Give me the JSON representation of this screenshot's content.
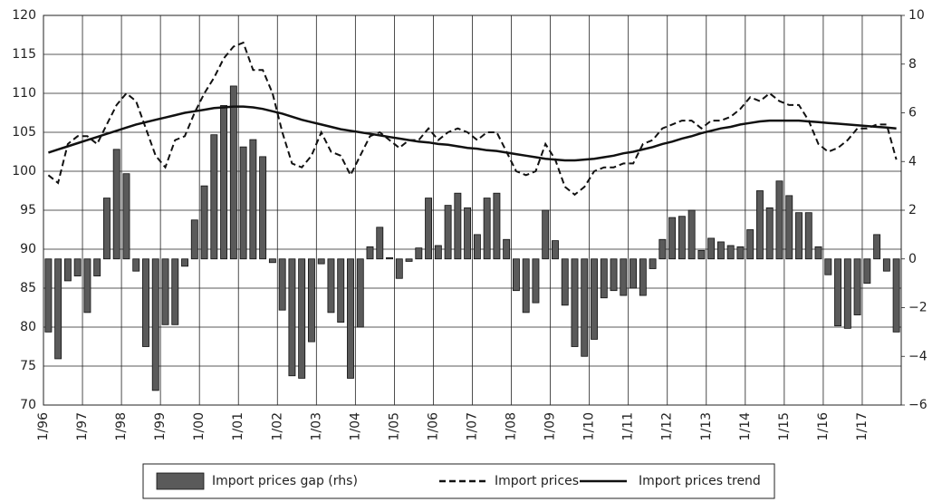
{
  "chart_data": {
    "type": "combo",
    "categories": [
      "1/96",
      null,
      null,
      null,
      "1/97",
      null,
      null,
      null,
      "1/98",
      null,
      null,
      null,
      "1/99",
      null,
      null,
      null,
      "1/00",
      null,
      null,
      null,
      "1/01",
      null,
      null,
      null,
      "1/02",
      null,
      null,
      null,
      "1/03",
      null,
      null,
      null,
      "1/04",
      null,
      null,
      null,
      "1/05",
      null,
      null,
      null,
      "1/06",
      null,
      null,
      null,
      "1/07",
      null,
      null,
      null,
      "1/08",
      null,
      null,
      null,
      "1/09",
      null,
      null,
      null,
      "1/10",
      null,
      null,
      null,
      "1/11",
      null,
      null,
      null,
      "1/12",
      null,
      null,
      null,
      "1/13",
      null,
      null,
      null,
      "1/14",
      null,
      null,
      null,
      "1/15",
      null,
      null,
      null,
      "1/16",
      null,
      null,
      null,
      "1/17",
      null,
      null,
      null
    ],
    "series": [
      {
        "name": "Import prices gap (rhs)",
        "type": "bar",
        "axis": "y2",
        "color": "#5a5a5a",
        "values": [
          -3.0,
          -4.1,
          -0.9,
          -0.7,
          -2.2,
          -0.7,
          2.5,
          4.5,
          3.5,
          -0.5,
          -3.6,
          -5.4,
          -2.7,
          -2.7,
          -0.3,
          1.6,
          3.0,
          5.1,
          6.3,
          7.1,
          4.6,
          4.9,
          4.2,
          -0.15,
          -2.1,
          -4.8,
          -4.9,
          -3.4,
          -0.2,
          -2.2,
          -2.6,
          -4.9,
          -2.8,
          0.5,
          1.3,
          0.05,
          -0.8,
          -0.1,
          0.45,
          2.5,
          0.55,
          2.2,
          2.7,
          2.1,
          1.0,
          2.5,
          2.7,
          0.8,
          -1.3,
          -2.2,
          -1.8,
          2.0,
          0.75,
          -1.9,
          -3.6,
          -4.0,
          -3.3,
          -1.6,
          -1.3,
          -1.5,
          -1.2,
          -1.5,
          -0.4,
          0.8,
          1.7,
          1.75,
          2.0,
          0.35,
          0.85,
          0.7,
          0.55,
          0.5,
          1.2,
          2.8,
          2.1,
          3.2,
          2.6,
          1.9,
          1.9,
          0.5,
          -0.65,
          -2.75,
          -2.85,
          -2.3,
          -1.0,
          1.0,
          -0.5,
          -3.0
        ]
      },
      {
        "name": "Import prices",
        "type": "line",
        "style": "dashed",
        "color": "#111111",
        "values": [
          99.5,
          98.5,
          103.5,
          104.5,
          104.5,
          103.5,
          106,
          108.5,
          110,
          109,
          105.5,
          102,
          100.5,
          104,
          104.5,
          107.5,
          110,
          112,
          114.5,
          116,
          116.5,
          113,
          113,
          110,
          105,
          101,
          100.5,
          102,
          105,
          102.5,
          102,
          99.5,
          102,
          104.5,
          105,
          104,
          103,
          104,
          104,
          105.5,
          104,
          105,
          105.5,
          105,
          104,
          105,
          105,
          102.5,
          100,
          99.5,
          100,
          103.5,
          101.5,
          98,
          97,
          98,
          100,
          100.5,
          100.5,
          101,
          101,
          103.5,
          104,
          105.5,
          106,
          106.5,
          106.5,
          105.5,
          106.5,
          106.5,
          107,
          108,
          109.5,
          109,
          110,
          109,
          108.5,
          108.5,
          106.5,
          103.5,
          102.5,
          103,
          104,
          105.5,
          105.5,
          106,
          106,
          101.5
        ]
      },
      {
        "name": "Import prices trend",
        "type": "line",
        "style": "solid",
        "color": "#111111",
        "values": [
          102.4,
          102.8,
          103.2,
          103.6,
          104.0,
          104.4,
          104.8,
          105.2,
          105.6,
          106.0,
          106.3,
          106.6,
          106.9,
          107.2,
          107.5,
          107.7,
          107.9,
          108.1,
          108.2,
          108.3,
          108.3,
          108.2,
          108.0,
          107.7,
          107.4,
          107.0,
          106.6,
          106.3,
          106.0,
          105.7,
          105.4,
          105.2,
          105.0,
          104.8,
          104.6,
          104.4,
          104.2,
          104.0,
          103.8,
          103.7,
          103.5,
          103.4,
          103.2,
          103.0,
          102.9,
          102.7,
          102.6,
          102.4,
          102.2,
          102.0,
          101.8,
          101.6,
          101.5,
          101.4,
          101.4,
          101.5,
          101.6,
          101.8,
          102.0,
          102.3,
          102.5,
          102.8,
          103.1,
          103.5,
          103.8,
          104.2,
          104.5,
          104.9,
          105.2,
          105.5,
          105.7,
          106.0,
          106.2,
          106.4,
          106.5,
          106.5,
          106.5,
          106.5,
          106.4,
          106.3,
          106.2,
          106.1,
          106.0,
          105.9,
          105.8,
          105.7,
          105.6,
          105.5
        ]
      }
    ],
    "ylim": [
      70,
      120
    ],
    "yticks": [
      70,
      75,
      80,
      85,
      90,
      95,
      100,
      105,
      110,
      115,
      120
    ],
    "y2lim": [
      -6,
      10
    ],
    "y2ticks": [
      {
        "value": -6,
        "label": "−6"
      },
      {
        "value": -4,
        "label": "−4"
      },
      {
        "value": -2,
        "label": "−2"
      },
      0,
      2,
      4,
      6,
      8,
      10
    ],
    "grid": true,
    "legend": "bottom"
  }
}
